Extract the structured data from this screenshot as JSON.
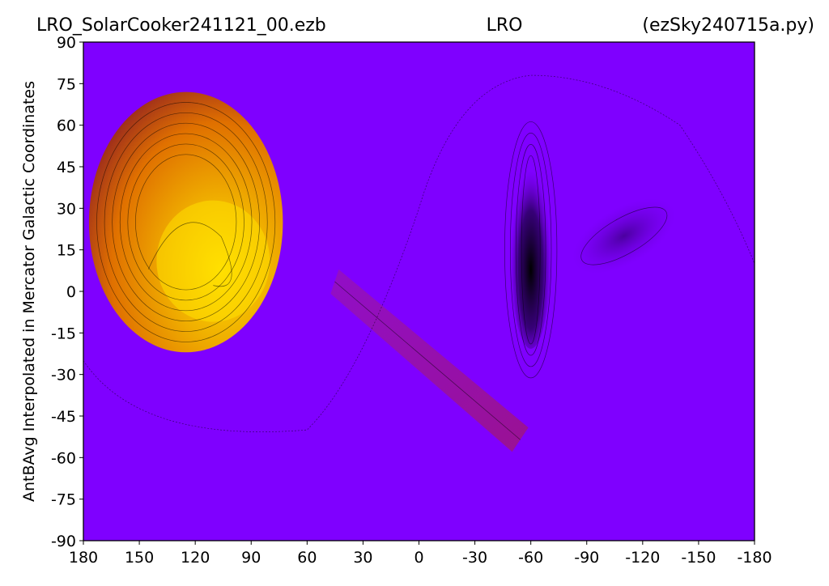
{
  "title": {
    "left": "LRO_SolarCooker241121_00.ezb",
    "center": "LRO",
    "right": "(ezSky240715a.py)"
  },
  "chart_data": {
    "type": "heatmap",
    "ylabel": "AntBAvg Interpolated in Mercator Galactic Coordinates",
    "xlabel": "",
    "xlim": [
      180,
      -180
    ],
    "ylim": [
      -90,
      90
    ],
    "x_ticks": [
      180,
      150,
      120,
      90,
      60,
      30,
      0,
      -30,
      -60,
      -90,
      -120,
      -150,
      -180
    ],
    "y_ticks": [
      90,
      75,
      60,
      45,
      30,
      15,
      0,
      -15,
      -30,
      -45,
      -60,
      -75,
      -90
    ],
    "colormap": "gnuplot",
    "colors": {
      "background": "#7f00ff",
      "hot_low": "#a0301a",
      "hot_mid": "#e07000",
      "hot_high": "#ffe000",
      "cold": "#000000",
      "contour": "#000000"
    },
    "features": [
      {
        "name": "hot-region",
        "x_center": 125,
        "y_center": 25,
        "x_half_width": 52,
        "y_half_height": 47,
        "peak_x": 93,
        "peak_y": 8,
        "level": "high"
      },
      {
        "name": "cold-region",
        "x_center": -60,
        "y_center": 15,
        "x_half_width": 5,
        "y_half_height": 34,
        "level": "low"
      },
      {
        "name": "warm-ridge-lower",
        "x_start": 30,
        "y_start": 5,
        "x_end": -50,
        "y_end": -55,
        "level": "mild"
      },
      {
        "name": "dark-lobe-right",
        "x_center": -110,
        "y_center": 20,
        "level": "low"
      }
    ],
    "grid": false,
    "contours": true
  }
}
